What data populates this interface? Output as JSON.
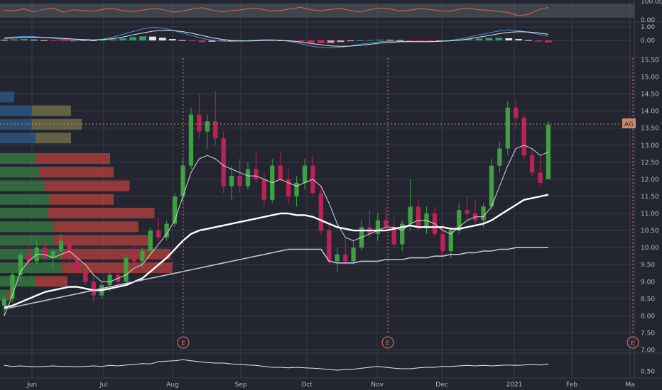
{
  "chart_data": [
    {
      "type": "line",
      "panel": "oscillator-top",
      "ylim": [
        0,
        100
      ],
      "tick_labels": [
        "100.00",
        "0.00"
      ],
      "series": [
        {
          "values": [
            52,
            48,
            60,
            44,
            57,
            63,
            41,
            55,
            50,
            46,
            58,
            62,
            49,
            45,
            53,
            61,
            57,
            42,
            48,
            59,
            66,
            52,
            44,
            50,
            55,
            63,
            58,
            47,
            52,
            60,
            68,
            55,
            49,
            57,
            62,
            50,
            43,
            56,
            64,
            59,
            48,
            53,
            61,
            57,
            50,
            46,
            58,
            63,
            55,
            52,
            45,
            40,
            22,
            30,
            55,
            68
          ]
        }
      ]
    },
    {
      "type": "bar",
      "panel": "macd",
      "ylim": [
        -1.2,
        1.2
      ],
      "tick_labels": [
        "1.00",
        "0.00"
      ],
      "histogram": [
        0.05,
        0.08,
        0.1,
        0.06,
        0.02,
        -0.03,
        -0.06,
        -0.08,
        -0.05,
        -0.02,
        0.03,
        0.08,
        0.15,
        0.24,
        0.3,
        0.28,
        0.2,
        0.1,
        0.02,
        -0.06,
        -0.12,
        -0.1,
        -0.07,
        -0.04,
        0.01,
        0.04,
        0.06,
        0.04,
        0.0,
        -0.05,
        -0.1,
        -0.16,
        -0.2,
        -0.18,
        -0.12,
        -0.06,
        0.0,
        0.03,
        0.06,
        0.05,
        0.02,
        -0.02,
        -0.05,
        -0.06,
        -0.03,
        0.0,
        0.04,
        0.09,
        0.14,
        0.18,
        0.2,
        0.16,
        0.1,
        0.02,
        -0.08,
        -0.14
      ],
      "series": [
        {
          "values": [
            0.2,
            0.25,
            0.3,
            0.28,
            0.22,
            0.15,
            0.08,
            0.02,
            0.0,
            0.02,
            0.1,
            0.25,
            0.45,
            0.65,
            0.85,
            0.95,
            0.9,
            0.75,
            0.55,
            0.35,
            0.15,
            0.02,
            -0.05,
            -0.08,
            -0.05,
            0.0,
            0.05,
            0.05,
            0.0,
            -0.1,
            -0.25,
            -0.4,
            -0.52,
            -0.55,
            -0.5,
            -0.4,
            -0.28,
            -0.18,
            -0.1,
            -0.06,
            -0.06,
            -0.08,
            -0.1,
            -0.1,
            -0.06,
            0.0,
            0.1,
            0.25,
            0.4,
            0.55,
            0.7,
            0.78,
            0.72,
            0.6,
            0.45,
            0.3
          ]
        },
        {
          "values": [
            0.15,
            0.18,
            0.22,
            0.24,
            0.22,
            0.19,
            0.15,
            0.1,
            0.06,
            0.04,
            0.06,
            0.13,
            0.25,
            0.4,
            0.55,
            0.68,
            0.74,
            0.73,
            0.65,
            0.52,
            0.36,
            0.2,
            0.08,
            0.0,
            -0.04,
            -0.04,
            -0.01,
            0.01,
            0.0,
            -0.04,
            -0.12,
            -0.22,
            -0.32,
            -0.4,
            -0.43,
            -0.42,
            -0.36,
            -0.28,
            -0.2,
            -0.14,
            -0.1,
            -0.09,
            -0.09,
            -0.09,
            -0.07,
            -0.04,
            0.02,
            0.12,
            0.24,
            0.36,
            0.49,
            0.6,
            0.64,
            0.62,
            0.55,
            0.45
          ]
        }
      ]
    },
    {
      "type": "candlestick",
      "panel": "price",
      "ylim": [
        6.95,
        15.55
      ],
      "tick_labels": [
        "15.50",
        "15.00",
        "14.50",
        "14.00",
        "13.50",
        "13.00",
        "12.50",
        "12.00",
        "11.50",
        "11.00",
        "10.50",
        "10.00",
        "9.50",
        "9.00",
        "8.50",
        "8.00",
        "7.50",
        "7.00"
      ],
      "x_labels": [
        "Jun",
        "Jul",
        "Aug",
        "Sep",
        "Oct",
        "Nov",
        "Dec",
        "2021",
        "Feb",
        "Ma"
      ],
      "last_price_label": "AG",
      "last_price": 13.6,
      "event_marker_label": "E",
      "candles": [
        {
          "o": 8.3,
          "h": 8.6,
          "l": 8.0,
          "c": 8.5
        },
        {
          "o": 8.5,
          "h": 9.3,
          "l": 8.4,
          "c": 9.2
        },
        {
          "o": 9.2,
          "h": 9.9,
          "l": 9.0,
          "c": 9.8
        },
        {
          "o": 9.8,
          "h": 10.1,
          "l": 9.5,
          "c": 9.6
        },
        {
          "o": 9.6,
          "h": 10.2,
          "l": 9.5,
          "c": 10.0
        },
        {
          "o": 10.0,
          "h": 10.3,
          "l": 9.6,
          "c": 9.7
        },
        {
          "o": 9.7,
          "h": 10.0,
          "l": 9.4,
          "c": 9.9
        },
        {
          "o": 9.9,
          "h": 10.4,
          "l": 9.8,
          "c": 10.2
        },
        {
          "o": 10.2,
          "h": 10.3,
          "l": 9.6,
          "c": 9.7
        },
        {
          "o": 9.7,
          "h": 9.9,
          "l": 9.2,
          "c": 9.3
        },
        {
          "o": 9.3,
          "h": 9.5,
          "l": 8.9,
          "c": 9.0
        },
        {
          "o": 9.0,
          "h": 9.2,
          "l": 8.4,
          "c": 8.6
        },
        {
          "o": 8.6,
          "h": 9.0,
          "l": 8.5,
          "c": 8.9
        },
        {
          "o": 8.9,
          "h": 9.3,
          "l": 8.7,
          "c": 9.2
        },
        {
          "o": 9.2,
          "h": 9.5,
          "l": 8.9,
          "c": 9.0
        },
        {
          "o": 9.0,
          "h": 9.8,
          "l": 8.9,
          "c": 9.7
        },
        {
          "o": 9.7,
          "h": 10.1,
          "l": 9.5,
          "c": 9.6
        },
        {
          "o": 9.6,
          "h": 10.0,
          "l": 9.4,
          "c": 9.9
        },
        {
          "o": 9.9,
          "h": 10.6,
          "l": 9.8,
          "c": 10.5
        },
        {
          "o": 10.5,
          "h": 10.9,
          "l": 10.2,
          "c": 10.3
        },
        {
          "o": 10.3,
          "h": 10.8,
          "l": 10.2,
          "c": 10.7
        },
        {
          "o": 10.7,
          "h": 11.6,
          "l": 10.6,
          "c": 11.5
        },
        {
          "o": 11.5,
          "h": 12.6,
          "l": 11.3,
          "c": 12.4
        },
        {
          "o": 12.4,
          "h": 14.1,
          "l": 12.3,
          "c": 13.9
        },
        {
          "o": 13.9,
          "h": 14.5,
          "l": 13.2,
          "c": 13.4
        },
        {
          "o": 13.4,
          "h": 13.9,
          "l": 12.9,
          "c": 13.7
        },
        {
          "o": 13.7,
          "h": 14.6,
          "l": 13.0,
          "c": 13.2
        },
        {
          "o": 13.2,
          "h": 13.4,
          "l": 11.6,
          "c": 11.8
        },
        {
          "o": 11.8,
          "h": 12.4,
          "l": 11.4,
          "c": 12.1
        },
        {
          "o": 12.1,
          "h": 12.6,
          "l": 11.6,
          "c": 11.8
        },
        {
          "o": 11.8,
          "h": 12.5,
          "l": 11.7,
          "c": 12.3
        },
        {
          "o": 12.3,
          "h": 12.8,
          "l": 11.9,
          "c": 12.0
        },
        {
          "o": 12.0,
          "h": 12.2,
          "l": 11.2,
          "c": 11.4
        },
        {
          "o": 11.4,
          "h": 12.6,
          "l": 11.3,
          "c": 12.4
        },
        {
          "o": 12.4,
          "h": 12.8,
          "l": 11.9,
          "c": 12.0
        },
        {
          "o": 12.0,
          "h": 12.3,
          "l": 11.3,
          "c": 11.5
        },
        {
          "o": 11.5,
          "h": 12.1,
          "l": 11.2,
          "c": 11.9
        },
        {
          "o": 11.9,
          "h": 12.6,
          "l": 11.7,
          "c": 12.4
        },
        {
          "o": 12.4,
          "h": 12.7,
          "l": 11.5,
          "c": 11.6
        },
        {
          "o": 11.6,
          "h": 11.8,
          "l": 10.4,
          "c": 10.5
        },
        {
          "o": 10.5,
          "h": 10.7,
          "l": 9.5,
          "c": 9.6
        },
        {
          "o": 9.6,
          "h": 10.0,
          "l": 9.3,
          "c": 9.8
        },
        {
          "o": 9.8,
          "h": 10.3,
          "l": 9.5,
          "c": 9.6
        },
        {
          "o": 9.6,
          "h": 10.2,
          "l": 9.5,
          "c": 10.0
        },
        {
          "o": 10.0,
          "h": 10.8,
          "l": 9.9,
          "c": 10.6
        },
        {
          "o": 10.6,
          "h": 11.1,
          "l": 10.3,
          "c": 10.4
        },
        {
          "o": 10.4,
          "h": 11.0,
          "l": 10.2,
          "c": 10.8
        },
        {
          "o": 10.8,
          "h": 11.2,
          "l": 10.5,
          "c": 10.6
        },
        {
          "o": 10.6,
          "h": 10.9,
          "l": 10.0,
          "c": 10.1
        },
        {
          "o": 10.1,
          "h": 10.8,
          "l": 9.9,
          "c": 10.7
        },
        {
          "o": 10.7,
          "h": 12.0,
          "l": 10.5,
          "c": 11.2
        },
        {
          "o": 11.2,
          "h": 11.4,
          "l": 10.5,
          "c": 10.6
        },
        {
          "o": 10.6,
          "h": 11.2,
          "l": 10.4,
          "c": 11.0
        },
        {
          "o": 11.0,
          "h": 11.2,
          "l": 10.3,
          "c": 10.4
        },
        {
          "o": 10.4,
          "h": 10.7,
          "l": 9.7,
          "c": 9.9
        },
        {
          "o": 9.9,
          "h": 10.6,
          "l": 9.7,
          "c": 10.5
        },
        {
          "o": 10.5,
          "h": 11.3,
          "l": 10.4,
          "c": 11.1
        },
        {
          "o": 11.1,
          "h": 11.5,
          "l": 10.8,
          "c": 11.0
        },
        {
          "o": 11.0,
          "h": 11.4,
          "l": 10.7,
          "c": 10.8
        },
        {
          "o": 10.8,
          "h": 11.3,
          "l": 10.6,
          "c": 11.2
        },
        {
          "o": 11.2,
          "h": 12.6,
          "l": 11.1,
          "c": 12.4
        },
        {
          "o": 12.4,
          "h": 13.1,
          "l": 12.2,
          "c": 12.9
        },
        {
          "o": 12.9,
          "h": 14.3,
          "l": 12.7,
          "c": 14.1
        },
        {
          "o": 14.1,
          "h": 14.3,
          "l": 13.5,
          "c": 13.8
        },
        {
          "o": 13.8,
          "h": 13.9,
          "l": 12.6,
          "c": 12.7
        },
        {
          "o": 12.7,
          "h": 12.9,
          "l": 12.1,
          "c": 12.2
        },
        {
          "o": 12.2,
          "h": 12.7,
          "l": 11.8,
          "c": 11.9
        },
        {
          "o": 12.0,
          "h": 13.7,
          "l": 12.0,
          "c": 13.6
        }
      ],
      "series": [
        {
          "values": [
            8.0,
            8.6,
            9.3,
            9.6,
            9.8,
            9.8,
            9.7,
            9.8,
            9.9,
            9.7,
            9.5,
            9.2,
            9.0,
            9.0,
            9.1,
            9.2,
            9.4,
            9.5,
            9.8,
            10.1,
            10.4,
            10.8,
            11.5,
            12.2,
            12.6,
            12.7,
            12.6,
            12.4,
            12.3,
            12.2,
            12.1,
            12.1,
            12.0,
            11.9,
            12.0,
            11.9,
            11.8,
            11.9,
            12.0,
            11.8,
            11.3,
            10.7,
            10.3,
            10.2,
            10.3,
            10.4,
            10.5,
            10.6,
            10.6,
            10.5,
            10.7,
            10.8,
            10.8,
            10.7,
            10.5,
            10.4,
            10.6,
            10.8,
            10.9,
            10.9,
            11.2,
            11.8,
            12.4,
            12.9,
            13.0,
            12.9,
            12.7,
            12.8
          ]
        },
        {
          "values": [
            8.25,
            8.3,
            8.4,
            8.5,
            8.6,
            8.7,
            8.75,
            8.8,
            8.85,
            8.85,
            8.8,
            8.75,
            8.75,
            8.8,
            8.85,
            8.9,
            9.0,
            9.1,
            9.3,
            9.5,
            9.7,
            9.95,
            10.2,
            10.4,
            10.5,
            10.55,
            10.6,
            10.65,
            10.7,
            10.75,
            10.8,
            10.85,
            10.9,
            10.95,
            11.0,
            11.0,
            10.95,
            10.95,
            10.9,
            10.8,
            10.7,
            10.6,
            10.55,
            10.5,
            10.5,
            10.5,
            10.5,
            10.5,
            10.55,
            10.6,
            10.65,
            10.6,
            10.6,
            10.6,
            10.6,
            10.55,
            10.55,
            10.6,
            10.65,
            10.7,
            10.8,
            10.95,
            11.1,
            11.25,
            11.4,
            11.45,
            11.5,
            11.55
          ]
        },
        {
          "values": [
            8.2,
            8.25,
            8.3,
            8.35,
            8.4,
            8.45,
            8.5,
            8.55,
            8.6,
            8.65,
            8.7,
            8.75,
            8.8,
            8.85,
            8.9,
            8.95,
            9.0,
            9.05,
            9.1,
            9.15,
            9.2,
            9.25,
            9.3,
            9.35,
            9.4,
            9.45,
            9.5,
            9.55,
            9.6,
            9.65,
            9.7,
            9.75,
            9.8,
            9.85,
            9.9,
            9.95,
            9.95,
            9.95,
            9.95,
            9.95,
            9.6,
            9.55,
            9.55,
            9.55,
            9.6,
            9.6,
            9.6,
            9.65,
            9.65,
            9.65,
            9.7,
            9.7,
            9.7,
            9.75,
            9.75,
            9.8,
            9.8,
            9.85,
            9.85,
            9.9,
            9.9,
            9.95,
            9.95,
            10.0,
            10.0,
            10.0,
            10.0,
            10.0
          ]
        }
      ],
      "volume_profile": [
        {
          "price": 14.4,
          "up": 0.08,
          "down": 0.0
        },
        {
          "price": 14.0,
          "up": 0.18,
          "down": 0.22
        },
        {
          "price": 13.6,
          "up": 0.18,
          "down": 0.28
        },
        {
          "price": 13.2,
          "up": 0.2,
          "down": 0.2
        },
        {
          "price": 12.6,
          "up": 0.2,
          "down": 0.42
        },
        {
          "price": 12.2,
          "up": 0.22,
          "down": 0.42
        },
        {
          "price": 11.8,
          "up": 0.25,
          "down": 0.48
        },
        {
          "price": 11.4,
          "up": 0.28,
          "down": 0.36
        },
        {
          "price": 11.0,
          "up": 0.27,
          "down": 0.6
        },
        {
          "price": 10.6,
          "up": 0.3,
          "down": 0.48
        },
        {
          "price": 10.2,
          "up": 0.3,
          "down": 0.55
        },
        {
          "price": 9.8,
          "up": 0.34,
          "down": 0.62
        },
        {
          "price": 9.4,
          "up": 0.35,
          "down": 0.62
        },
        {
          "price": 9.0,
          "up": 0.2,
          "down": 0.18
        },
        {
          "price": 8.6,
          "up": 0.04,
          "down": 0.02
        }
      ]
    },
    {
      "type": "line",
      "panel": "volatility",
      "ylim": [
        0.4,
        0.85
      ],
      "tick_labels": [
        "0.50"
      ],
      "series": [
        {
          "values": [
            0.62,
            0.6,
            0.61,
            0.6,
            0.59,
            0.6,
            0.61,
            0.6,
            0.6,
            0.59,
            0.6,
            0.61,
            0.6,
            0.62,
            0.61,
            0.63,
            0.64,
            0.66,
            0.65,
            0.7,
            0.71,
            0.72,
            0.74,
            0.72,
            0.7,
            0.68,
            0.67,
            0.67,
            0.65,
            0.64,
            0.63,
            0.62,
            0.6,
            0.58,
            0.58,
            0.57,
            0.58,
            0.57,
            0.56,
            0.55,
            0.53,
            0.52,
            0.53,
            0.54,
            0.56,
            0.58,
            0.6,
            0.58,
            0.56,
            0.55,
            0.55,
            0.57,
            0.58,
            0.58,
            0.6,
            0.6,
            0.61,
            0.62,
            0.61,
            0.62,
            0.61,
            0.62,
            0.63,
            0.62,
            0.63,
            0.64,
            0.63,
            0.65
          ]
        }
      ]
    }
  ],
  "colors": {
    "background": "#232631",
    "grid": "#464a58",
    "axis_text": "#b6bac4",
    "up": "#3fa043",
    "down": "#bd2254",
    "ma_fast": "#d9d9d9",
    "ma_mid": "#ffffff",
    "ma_slow": "#c8bfdb",
    "oscillator": "#e0654f",
    "oscillator_band": "#5a5c64",
    "macd_line": "#4a90d9",
    "signal_line": "#e8e8e8",
    "event_line": "#e07a6a",
    "last_price_bg": "#c98a6f",
    "vp_up": "#3a7d44",
    "vp_down": "#c4413f",
    "vp_up_old": "#2e5c8a",
    "vp_down_old": "#7d7a48"
  }
}
